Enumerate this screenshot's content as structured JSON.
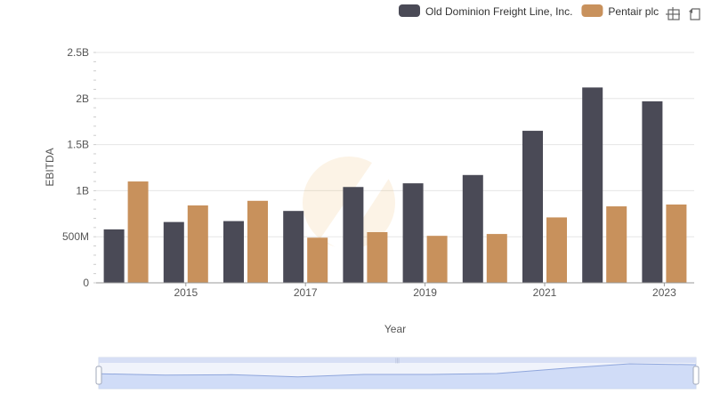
{
  "chart_data": {
    "type": "bar",
    "xlabel": "Year",
    "ylabel": "EBITDA",
    "x": [
      2014,
      2015,
      2016,
      2017,
      2018,
      2019,
      2020,
      2021,
      2022,
      2023
    ],
    "x_ticks": [
      "2015",
      "2017",
      "2019",
      "2021",
      "2023"
    ],
    "y_ticks": [
      "0",
      "500M",
      "1B",
      "1.5B",
      "2B",
      "2.5B"
    ],
    "ylim": [
      0,
      2500000000
    ],
    "grid": true,
    "legend_position": "top-right",
    "series": [
      {
        "name": "Old Dominion Freight Line, Inc.",
        "color": "#4a4a56",
        "values": [
          580000000,
          660000000,
          670000000,
          780000000,
          1040000000,
          1080000000,
          1170000000,
          1650000000,
          2120000000,
          1970000000
        ]
      },
      {
        "name": "Pentair plc",
        "color": "#c8915c",
        "values": [
          1100000000,
          840000000,
          890000000,
          490000000,
          550000000,
          510000000,
          530000000,
          710000000,
          830000000,
          850000000
        ]
      }
    ]
  },
  "toolbar": {
    "icons": [
      "zoom-icon",
      "reset-icon"
    ]
  }
}
